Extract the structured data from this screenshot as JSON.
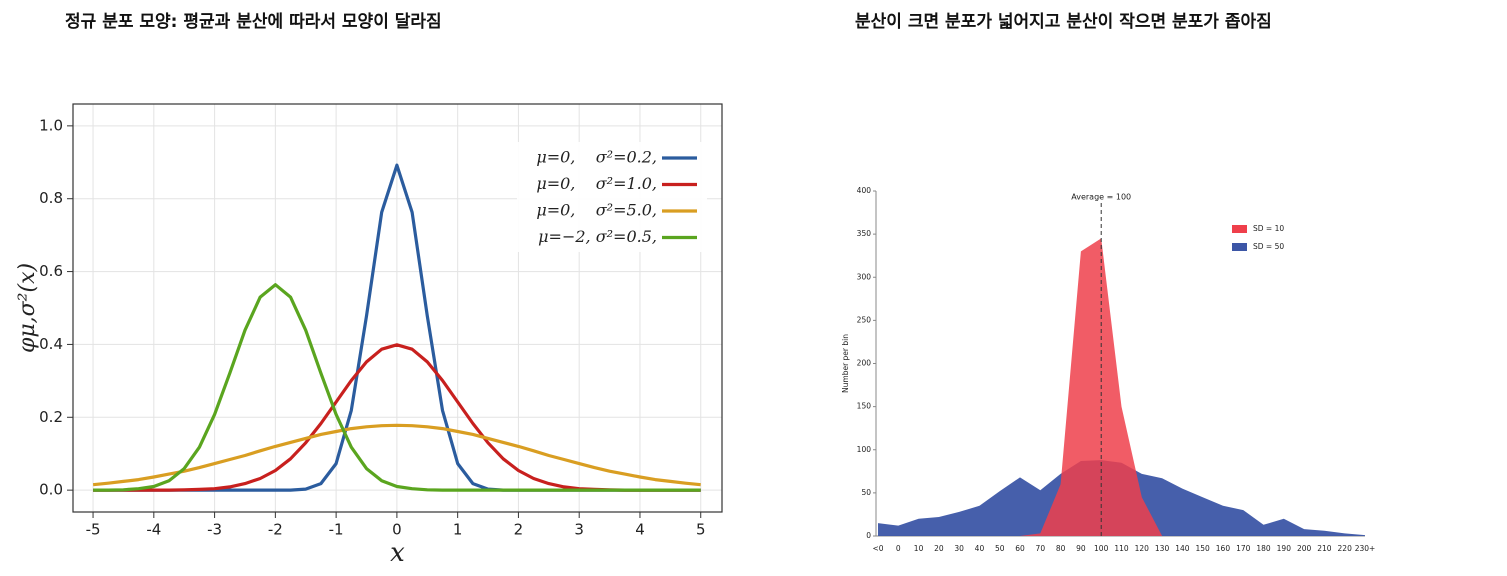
{
  "chart_data": [
    {
      "type": "line",
      "title": "정규 분포 모양: 평균과 분산에 따라서 모양이 달라짐",
      "x_label": "x",
      "y_label": "φμ,σ²(x)",
      "x": [
        -5,
        -4.75,
        -4.5,
        -4.25,
        -4,
        -3.75,
        -3.5,
        -3.25,
        -3,
        -2.75,
        -2.5,
        -2.25,
        -2,
        -1.75,
        -1.5,
        -1.25,
        -1,
        -0.75,
        -0.5,
        -0.25,
        0,
        0.25,
        0.5,
        0.75,
        1,
        1.25,
        1.5,
        1.75,
        2,
        2.25,
        2.5,
        2.75,
        3,
        3.25,
        3.5,
        3.75,
        4,
        4.25,
        4.5,
        4.75,
        5
      ],
      "series": [
        {
          "name": "μ=0,    σ²=0.2,",
          "color": "#2b5c9e",
          "values": [
            0,
            0,
            0,
            0,
            0,
            0,
            0,
            0,
            0,
            0,
            0,
            0,
            0,
            0,
            0.003,
            0.018,
            0.073,
            0.219,
            0.478,
            0.763,
            0.892,
            0.763,
            0.478,
            0.219,
            0.073,
            0.018,
            0.003,
            0,
            0,
            0,
            0,
            0,
            0,
            0,
            0,
            0,
            0,
            0,
            0,
            0,
            0
          ]
        },
        {
          "name": "μ=0,    σ²=1.0,",
          "color": "#c8201e",
          "values": [
            0,
            0,
            0,
            0,
            0,
            0,
            0.001,
            0.002,
            0.004,
            0.009,
            0.018,
            0.032,
            0.054,
            0.086,
            0.13,
            0.183,
            0.242,
            0.301,
            0.352,
            0.387,
            0.399,
            0.387,
            0.352,
            0.301,
            0.242,
            0.183,
            0.13,
            0.086,
            0.054,
            0.032,
            0.018,
            0.009,
            0.004,
            0.002,
            0.001,
            0,
            0,
            0,
            0,
            0,
            0
          ]
        },
        {
          "name": "μ=0,    σ²=5.0,",
          "color": "#d99e22",
          "values": [
            0.015,
            0.019,
            0.024,
            0.029,
            0.036,
            0.044,
            0.052,
            0.062,
            0.073,
            0.084,
            0.095,
            0.108,
            0.12,
            0.131,
            0.142,
            0.153,
            0.161,
            0.169,
            0.174,
            0.177,
            0.178,
            0.177,
            0.174,
            0.169,
            0.161,
            0.153,
            0.142,
            0.131,
            0.12,
            0.108,
            0.095,
            0.084,
            0.073,
            0.062,
            0.052,
            0.044,
            0.036,
            0.029,
            0.024,
            0.019,
            0.015
          ]
        },
        {
          "name": "μ=−2, σ²=0.5,",
          "color": "#5aa51f",
          "values": [
            0,
            0,
            0.001,
            0.004,
            0.01,
            0.026,
            0.059,
            0.118,
            0.208,
            0.321,
            0.439,
            0.53,
            0.564,
            0.53,
            0.439,
            0.321,
            0.208,
            0.118,
            0.059,
            0.026,
            0.01,
            0.004,
            0.001,
            0,
            0,
            0,
            0,
            0,
            0,
            0,
            0,
            0,
            0,
            0,
            0,
            0,
            0,
            0,
            0,
            0,
            0
          ]
        }
      ],
      "xlim": [
        -5.33,
        5.35
      ],
      "ylim": [
        -0.06,
        1.06
      ],
      "xticks": [
        -5,
        -4,
        -3,
        -2,
        -1,
        0,
        1,
        2,
        3,
        4,
        5
      ],
      "yticks": [
        {
          "value": 0,
          "label": "0.0"
        },
        {
          "value": 0.2,
          "label": "0.2"
        },
        {
          "value": 0.4,
          "label": "0.4"
        },
        {
          "value": 0.6,
          "label": "0.6"
        },
        {
          "value": 0.8,
          "label": "0.8"
        },
        {
          "value": 1,
          "label": "1.0"
        }
      ],
      "grid": true,
      "legend": "upper right"
    },
    {
      "type": "area",
      "title": "분산이 크면 분포가 넓어지고 분산이 작으면 분포가 좁아짐",
      "y_label": "Number per bin",
      "categories": [
        "<0",
        "0",
        "10",
        "20",
        "30",
        "40",
        "50",
        "60",
        "70",
        "80",
        "90",
        "100",
        "110",
        "120",
        "130",
        "140",
        "150",
        "160",
        "170",
        "180",
        "190",
        "200",
        "210",
        "220",
        "230+"
      ],
      "series": [
        {
          "name": "SD = 10",
          "color": "#ef3f4b",
          "values": [
            0,
            0,
            0,
            0,
            0,
            0,
            0,
            0,
            3,
            60,
            330,
            345,
            150,
            45,
            0,
            0,
            0,
            0,
            0,
            0,
            0,
            0,
            0,
            0,
            0
          ]
        },
        {
          "name": "SD = 50",
          "color": "#3c56a6",
          "values": [
            15,
            12,
            20,
            22,
            28,
            35,
            52,
            68,
            53,
            72,
            87,
            88,
            85,
            72,
            67,
            55,
            45,
            35,
            30,
            13,
            20,
            8,
            6,
            3,
            1
          ]
        }
      ],
      "ylim": [
        0,
        400
      ],
      "yticks": [
        0,
        50,
        100,
        150,
        200,
        250,
        300,
        350,
        400
      ],
      "annotations": [
        {
          "text": "Average = 100",
          "x": "100"
        }
      ],
      "grid": false,
      "legend": "upper right"
    }
  ]
}
